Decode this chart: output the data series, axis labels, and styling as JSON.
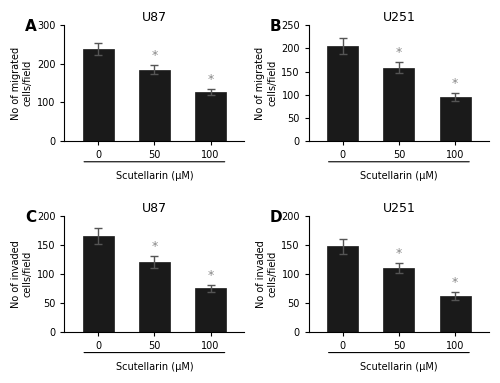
{
  "panels": [
    {
      "label": "A",
      "title": "U87",
      "ylabel": "No of migrated\ncells/field",
      "xlabel": "Scutellarin (μM)",
      "categories": [
        "0",
        "50",
        "100"
      ],
      "values": [
        238,
        185,
        128
      ],
      "errors": [
        15,
        12,
        8
      ],
      "ylim": [
        0,
        300
      ],
      "yticks": [
        0,
        100,
        200,
        300
      ],
      "sig": [
        false,
        true,
        true
      ]
    },
    {
      "label": "B",
      "title": "U251",
      "ylabel": "No of migrated\ncells/field",
      "xlabel": "Scutellarin (μM)",
      "categories": [
        "0",
        "50",
        "100"
      ],
      "values": [
        205,
        158,
        95
      ],
      "errors": [
        18,
        12,
        8
      ],
      "ylim": [
        0,
        250
      ],
      "yticks": [
        0,
        50,
        100,
        150,
        200,
        250
      ],
      "sig": [
        false,
        true,
        true
      ]
    },
    {
      "label": "C",
      "title": "U87",
      "ylabel": "No of invaded\ncells/field",
      "xlabel": "Scutellarin (μM)",
      "categories": [
        "0",
        "50",
        "100"
      ],
      "values": [
        165,
        121,
        75
      ],
      "errors": [
        14,
        10,
        6
      ],
      "ylim": [
        0,
        200
      ],
      "yticks": [
        0,
        50,
        100,
        150,
        200
      ],
      "sig": [
        false,
        true,
        true
      ]
    },
    {
      "label": "D",
      "title": "U251",
      "ylabel": "No of invaded\ncells/field",
      "xlabel": "Scutellarin (μM)",
      "categories": [
        "0",
        "50",
        "100"
      ],
      "values": [
        148,
        110,
        62
      ],
      "errors": [
        13,
        9,
        7
      ],
      "ylim": [
        0,
        200
      ],
      "yticks": [
        0,
        50,
        100,
        150,
        200
      ],
      "sig": [
        false,
        true,
        true
      ]
    }
  ],
  "bar_color": "#1a1a1a",
  "bar_width": 0.55,
  "error_color": "#555555",
  "sig_color": "#888888",
  "bg_color": "#ffffff"
}
